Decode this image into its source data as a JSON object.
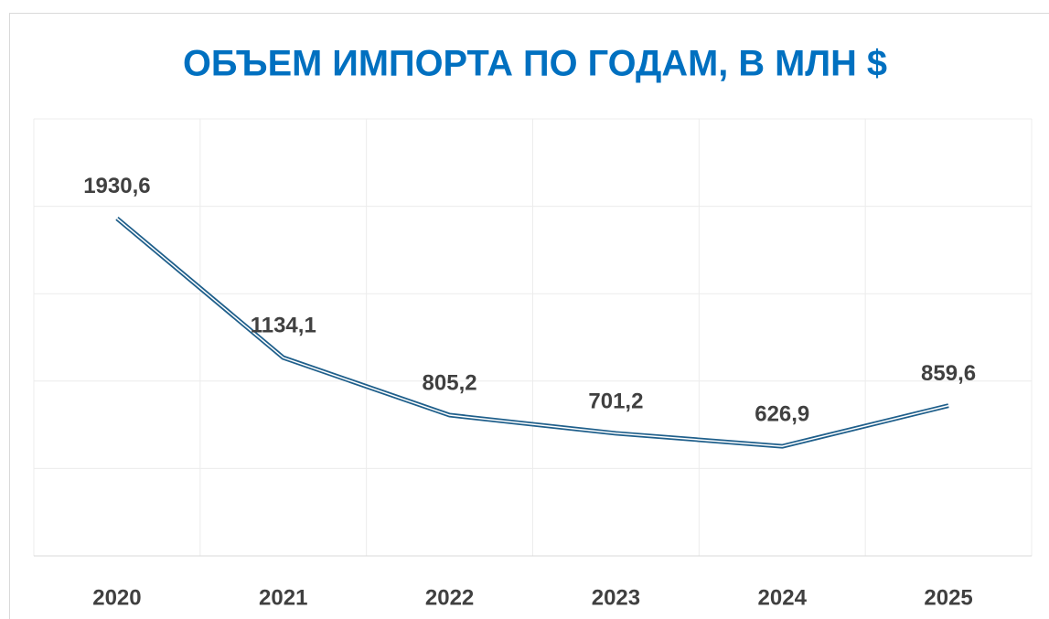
{
  "chart_data": {
    "type": "line",
    "title": "ОБЪЕМ ИМПОРТА ПО ГОДАМ,  В МЛН $",
    "categories": [
      "2020",
      "2021",
      "2022",
      "2023",
      "2024",
      "2025"
    ],
    "series": [
      {
        "color": "#1f5f8b",
        "values": [
          1930.6,
          1134.1,
          805.2,
          701.2,
          626.9,
          859.6
        ],
        "value_labels": [
          "1930,6",
          "1134,1",
          "805,2",
          "701,2",
          "626,9",
          "859,6"
        ]
      }
    ],
    "ylim": [
      0,
      2500
    ],
    "yticks": [
      0,
      500,
      1000,
      1500,
      2000,
      2500
    ],
    "grid": true
  }
}
